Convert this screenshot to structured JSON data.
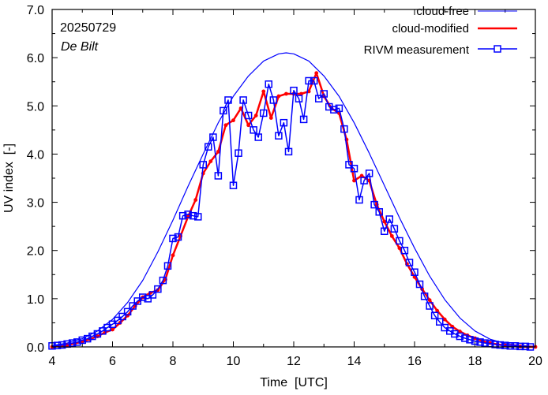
{
  "chart_data": {
    "type": "line",
    "title": "",
    "annotations": {
      "date": "20250729",
      "location": "De Bilt"
    },
    "xlabel": "Time  [UTC]",
    "ylabel": "UV index  [-]",
    "xlim": [
      4,
      20
    ],
    "ylim": [
      0,
      7
    ],
    "xticks": [
      4,
      6,
      8,
      10,
      12,
      14,
      16,
      18,
      20
    ],
    "xtick_labels": [
      "4",
      "6",
      "8",
      "10",
      "12",
      "14",
      "16",
      "18",
      "20"
    ],
    "yticks": [
      0,
      1,
      2,
      3,
      4,
      5,
      6,
      7
    ],
    "ytick_labels": [
      "0.0",
      "1.0",
      "2.0",
      "3.0",
      "4.0",
      "5.0",
      "6.0",
      "7.0"
    ],
    "grid": false,
    "legend_position": "top-right",
    "series": [
      {
        "name": "cloud-free",
        "color": "#0000ff",
        "style": "thin-line",
        "peak_time": 11.75,
        "peak_value": 6.1,
        "x": [
          4.0,
          4.5,
          5.0,
          5.5,
          6.0,
          6.5,
          7.0,
          7.5,
          8.0,
          8.5,
          9.0,
          9.5,
          10.0,
          10.5,
          11.0,
          11.5,
          11.75,
          12.0,
          12.5,
          13.0,
          13.5,
          14.0,
          14.5,
          15.0,
          15.5,
          16.0,
          16.5,
          17.0,
          17.5,
          18.0,
          18.5,
          19.0,
          19.5,
          20.0
        ],
        "y": [
          0.03,
          0.08,
          0.17,
          0.33,
          0.57,
          0.92,
          1.38,
          1.97,
          2.63,
          3.33,
          4.0,
          4.65,
          5.2,
          5.62,
          5.93,
          6.08,
          6.1,
          6.08,
          5.93,
          5.62,
          5.2,
          4.65,
          4.02,
          3.35,
          2.68,
          2.05,
          1.47,
          0.98,
          0.6,
          0.33,
          0.16,
          0.07,
          0.03,
          0.01
        ]
      },
      {
        "name": "cloud-modified",
        "color": "#ff0000",
        "style": "thick-line-dots",
        "x": [
          4.0,
          4.25,
          4.5,
          4.75,
          5.0,
          5.25,
          5.5,
          5.75,
          6.0,
          6.25,
          6.5,
          6.75,
          7.0,
          7.25,
          7.5,
          7.75,
          8.0,
          8.25,
          8.5,
          8.75,
          9.0,
          9.25,
          9.5,
          9.75,
          10.0,
          10.25,
          10.5,
          10.75,
          11.0,
          11.25,
          11.5,
          11.75,
          12.0,
          12.25,
          12.5,
          12.75,
          13.0,
          13.25,
          13.5,
          13.75,
          14.0,
          14.25,
          14.5,
          14.75,
          15.0,
          15.25,
          15.5,
          15.75,
          16.0,
          16.25,
          16.5,
          16.75,
          17.0,
          17.25,
          17.5,
          17.75,
          18.0,
          18.25,
          18.5,
          18.75,
          19.0,
          19.25,
          19.5,
          19.75,
          20.0
        ],
        "y": [
          0.0,
          0.02,
          0.04,
          0.07,
          0.11,
          0.16,
          0.22,
          0.3,
          0.36,
          0.5,
          0.65,
          0.85,
          1.03,
          1.12,
          1.18,
          1.4,
          1.9,
          2.3,
          2.7,
          3.05,
          3.6,
          3.85,
          4.05,
          4.6,
          4.7,
          4.95,
          4.6,
          4.8,
          5.3,
          4.75,
          5.2,
          5.25,
          5.25,
          5.25,
          5.3,
          5.68,
          5.2,
          4.95,
          4.85,
          4.3,
          3.45,
          3.55,
          3.45,
          2.95,
          2.6,
          2.3,
          2.05,
          1.72,
          1.45,
          1.2,
          0.97,
          0.75,
          0.57,
          0.42,
          0.32,
          0.24,
          0.18,
          0.12,
          0.08,
          0.05,
          0.03,
          0.02,
          0.01,
          0.0,
          0.0
        ]
      },
      {
        "name": "RIVM measurement",
        "color": "#0000ff",
        "style": "line-squares",
        "x": [
          4.0,
          4.17,
          4.33,
          4.5,
          4.67,
          4.83,
          5.0,
          5.17,
          5.33,
          5.5,
          5.67,
          5.83,
          6.0,
          6.17,
          6.33,
          6.5,
          6.67,
          6.83,
          7.0,
          7.17,
          7.33,
          7.5,
          7.67,
          7.83,
          8.0,
          8.17,
          8.33,
          8.5,
          8.67,
          8.83,
          9.0,
          9.17,
          9.33,
          9.5,
          9.67,
          9.83,
          10.0,
          10.17,
          10.33,
          10.5,
          10.67,
          10.83,
          11.0,
          11.17,
          11.33,
          11.5,
          11.67,
          11.83,
          12.0,
          12.17,
          12.33,
          12.5,
          12.67,
          12.83,
          13.0,
          13.17,
          13.33,
          13.5,
          13.67,
          13.83,
          14.0,
          14.17,
          14.33,
          14.5,
          14.67,
          14.83,
          15.0,
          15.17,
          15.33,
          15.5,
          15.67,
          15.83,
          16.0,
          16.17,
          16.33,
          16.5,
          16.67,
          16.83,
          17.0,
          17.17,
          17.33,
          17.5,
          17.67,
          17.83,
          18.0,
          18.17,
          18.33,
          18.5,
          18.67,
          18.83,
          19.0,
          19.17,
          19.33,
          19.5,
          19.67,
          19.83
        ],
        "y": [
          0.02,
          0.03,
          0.04,
          0.06,
          0.08,
          0.1,
          0.14,
          0.17,
          0.22,
          0.27,
          0.33,
          0.4,
          0.47,
          0.55,
          0.63,
          0.73,
          0.85,
          0.95,
          1.03,
          1.0,
          1.08,
          1.2,
          1.38,
          1.68,
          2.25,
          2.28,
          2.72,
          2.75,
          2.72,
          2.7,
          3.78,
          4.15,
          4.35,
          3.55,
          4.9,
          5.12,
          3.35,
          4.02,
          5.12,
          4.8,
          4.5,
          4.35,
          4.85,
          5.45,
          5.12,
          4.38,
          4.65,
          4.05,
          5.32,
          5.15,
          4.72,
          5.52,
          5.52,
          5.15,
          5.25,
          4.98,
          4.92,
          4.95,
          4.52,
          3.78,
          3.7,
          3.05,
          3.45,
          3.6,
          2.95,
          2.8,
          2.4,
          2.65,
          2.45,
          2.2,
          2.0,
          1.75,
          1.55,
          1.3,
          1.05,
          0.85,
          0.65,
          0.52,
          0.4,
          0.33,
          0.27,
          0.22,
          0.18,
          0.15,
          0.12,
          0.1,
          0.08,
          0.07,
          0.05,
          0.04,
          0.03,
          0.02,
          0.02,
          0.01,
          0.01,
          0.0
        ]
      }
    ]
  }
}
